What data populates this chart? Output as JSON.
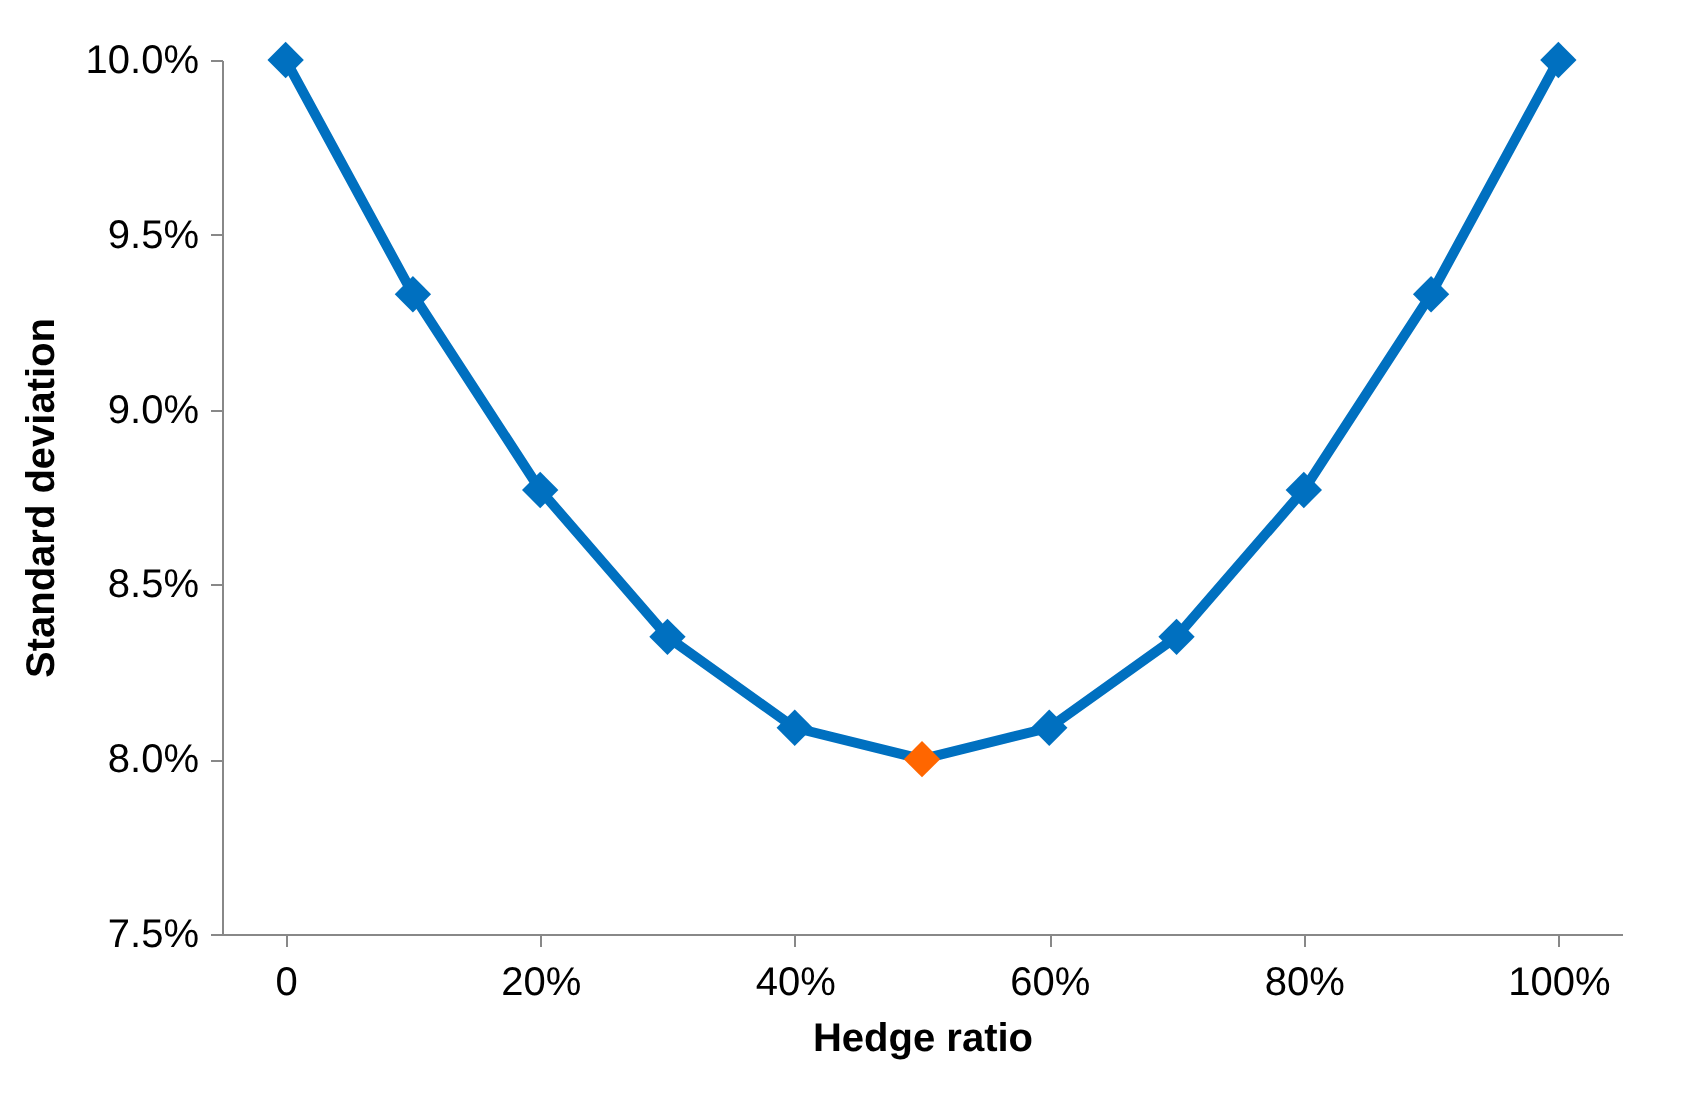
{
  "chart_data": {
    "type": "line",
    "xlabel": "Hedge ratio",
    "ylabel": "Standard deviation",
    "x": [
      0,
      10,
      20,
      30,
      40,
      50,
      60,
      70,
      80,
      90,
      100
    ],
    "series": [
      {
        "color": "#0070c0",
        "values": [
          10.0,
          9.33,
          8.77,
          8.35,
          8.09,
          8.0,
          8.09,
          8.35,
          8.77,
          9.33,
          10.0
        ]
      }
    ],
    "colors": [
      "#0070c0",
      "#0070c0",
      "#0070c0",
      "#0070c0",
      "#0070c0",
      "#ff6600",
      "#0070c0",
      "#0070c0",
      "#0070c0",
      "#0070c0",
      "#0070c0"
    ],
    "xlim": [
      -5,
      105
    ],
    "xticks": [
      0,
      {
        "value": 20,
        "label": "20%"
      },
      {
        "value": 40,
        "label": "40%"
      },
      {
        "value": 60,
        "label": "60%"
      },
      {
        "value": 80,
        "label": "80%"
      },
      {
        "value": 100,
        "label": "100%"
      }
    ],
    "ylim": [
      7.5,
      10.0
    ],
    "yticks": [
      {
        "value": 7.5,
        "label": "7.5%"
      },
      {
        "value": 8.0,
        "label": "8.0%"
      },
      {
        "value": 8.5,
        "label": "8.5%"
      },
      {
        "value": 9.0,
        "label": "9.0%"
      },
      {
        "value": 9.5,
        "label": "9.5%"
      },
      {
        "value": 10.0,
        "label": "10.0%"
      }
    ],
    "marker": "diamond",
    "grid": false
  }
}
